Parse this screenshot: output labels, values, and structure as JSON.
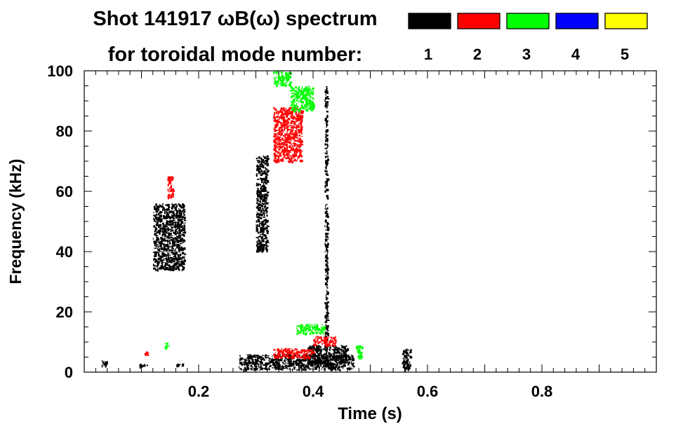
{
  "chart_data": {
    "type": "heatmap",
    "title": "Shot 141917 ωB(ω) spectrum",
    "subtitle": "for toroidal mode number:",
    "xlabel": "Time (s)",
    "ylabel": "Frequency (kHz)",
    "xlim": [
      0.0,
      1.0
    ],
    "ylim": [
      0,
      100
    ],
    "xticks": [
      0.2,
      0.4,
      0.6,
      0.8
    ],
    "xtick_labels": [
      "0.2",
      "0.4",
      "0.6",
      "0.8"
    ],
    "yticks": [
      0,
      20,
      40,
      60,
      80,
      100
    ],
    "ytick_labels": [
      "0",
      "20",
      "40",
      "60",
      "80",
      "100"
    ],
    "legend": {
      "placement": "top-right",
      "entries": [
        {
          "label": "1",
          "color": "#000000"
        },
        {
          "label": "2",
          "color": "#ff0000"
        },
        {
          "label": "3",
          "color": "#00ff00"
        },
        {
          "label": "4",
          "color": "#0000ff"
        },
        {
          "label": "5",
          "color": "#ffff00"
        }
      ]
    },
    "series": [
      {
        "mode": "1",
        "color": "#000000",
        "regions": [
          {
            "t": [
              0.12,
              0.175
            ],
            "f": [
              34,
              56
            ]
          },
          {
            "t": [
              0.3,
              0.32
            ],
            "f": [
              40,
              72
            ]
          },
          {
            "t": [
              0.27,
              0.47
            ],
            "f": [
              1,
              6
            ]
          },
          {
            "t": [
              0.39,
              0.46
            ],
            "f": [
              3,
              9
            ]
          },
          {
            "t": [
              0.42,
              0.425
            ],
            "f": [
              5,
              95
            ]
          },
          {
            "t": [
              0.03,
              0.04
            ],
            "f": [
              2,
              4
            ]
          },
          {
            "t": [
              0.095,
              0.11
            ],
            "f": [
              2,
              3
            ]
          },
          {
            "t": [
              0.16,
              0.175
            ],
            "f": [
              2,
              3
            ]
          },
          {
            "t": [
              0.555,
              0.57
            ],
            "f": [
              1,
              8
            ]
          }
        ]
      },
      {
        "mode": "2",
        "color": "#ff0000",
        "regions": [
          {
            "t": [
              0.33,
              0.38
            ],
            "f": [
              70,
              88
            ]
          },
          {
            "t": [
              0.145,
              0.155
            ],
            "f": [
              58,
              65
            ]
          },
          {
            "t": [
              0.33,
              0.4
            ],
            "f": [
              5,
              8
            ]
          },
          {
            "t": [
              0.4,
              0.44
            ],
            "f": [
              9,
              12
            ]
          },
          {
            "t": [
              0.105,
              0.11
            ],
            "f": [
              6,
              7
            ]
          }
        ]
      },
      {
        "mode": "3",
        "color": "#00ff00",
        "regions": [
          {
            "t": [
              0.33,
              0.36
            ],
            "f": [
              95,
              100
            ]
          },
          {
            "t": [
              0.36,
              0.4
            ],
            "f": [
              87,
              95
            ]
          },
          {
            "t": [
              0.37,
              0.42
            ],
            "f": [
              13,
              16
            ]
          },
          {
            "t": [
              0.475,
              0.485
            ],
            "f": [
              5,
              9
            ]
          },
          {
            "t": [
              0.14,
              0.145
            ],
            "f": [
              8,
              10
            ]
          }
        ]
      }
    ],
    "grid": false
  }
}
